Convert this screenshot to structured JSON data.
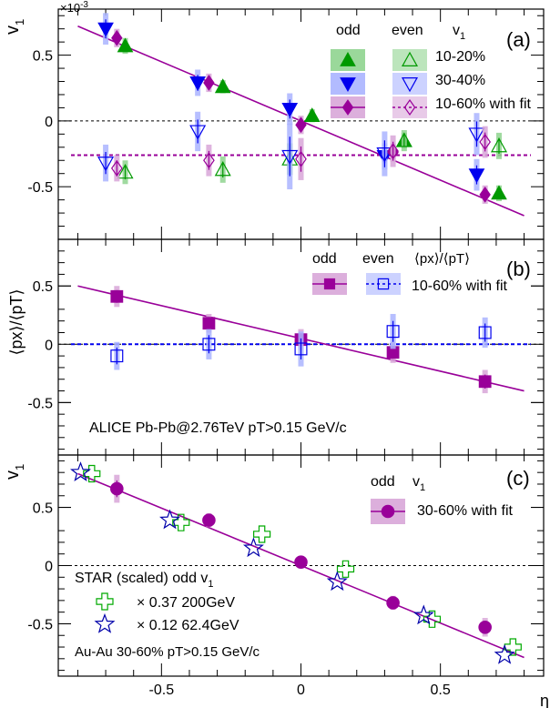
{
  "colors": {
    "green": "#009900",
    "green_light": "#8fd48f",
    "blue": "#0000ee",
    "blue_light": "#aab4ff",
    "purple": "#990099",
    "purple_light": "#d8a6d8",
    "star_green": "#00aa00",
    "star_blue": "#0000aa"
  },
  "chart_data": [
    {
      "panel": "(a)",
      "type": "scatter",
      "ylabel": "v1",
      "ylabel_sub": "1",
      "yscale_label": "×10",
      "yscale_exp": "-3",
      "xlim": [
        -0.87,
        0.87
      ],
      "ylim": [
        -0.9,
        0.85
      ],
      "yticks": [
        -0.5,
        0,
        0.5
      ],
      "ytick_labels": [
        "-0.5",
        "0",
        "0.5"
      ],
      "legend": {
        "col_odd": "odd",
        "col_even": "even",
        "col_v": "v",
        "col_v_sub": "1",
        "rows": [
          "10-20%",
          "30-40%",
          "10-60% with fit"
        ]
      },
      "series": [
        {
          "kind": "odd",
          "marker": "triangle-up",
          "color": "green",
          "x": [
            -0.63,
            -0.28,
            0.04,
            0.37,
            0.71
          ],
          "y": [
            0.57,
            0.26,
            0.04,
            -0.15,
            -0.55
          ],
          "err": [
            0.06,
            0.05,
            0.05,
            0.06,
            0.06
          ]
        },
        {
          "kind": "even",
          "marker": "triangle-up-open",
          "color": "green",
          "x": [
            -0.63,
            -0.28,
            -0.04,
            0.37,
            0.71
          ],
          "y": [
            -0.39,
            -0.37,
            -0.29,
            -0.15,
            -0.19
          ],
          "err": [
            0.09,
            0.1,
            0.12,
            0.08,
            0.1
          ]
        },
        {
          "kind": "odd",
          "marker": "triangle-down",
          "color": "blue",
          "x": [
            -0.7,
            -0.37,
            -0.04,
            0.3,
            0.63
          ],
          "y": [
            0.7,
            0.29,
            0.09,
            -0.27,
            -0.41
          ],
          "err": [
            0.12,
            0.1,
            0.12,
            0.1,
            0.12
          ]
        },
        {
          "kind": "even",
          "marker": "triangle-down-open",
          "color": "blue",
          "x": [
            -0.7,
            -0.37,
            -0.04,
            0.3,
            0.63
          ],
          "y": [
            -0.32,
            -0.08,
            -0.27,
            -0.25,
            -0.1
          ],
          "err": [
            0.14,
            0.15,
            0.25,
            0.17,
            0.16
          ]
        },
        {
          "kind": "odd",
          "marker": "diamond",
          "color": "purple",
          "x": [
            -0.66,
            -0.33,
            0,
            0.33,
            0.66
          ],
          "y": [
            0.63,
            0.29,
            -0.03,
            -0.24,
            -0.56
          ],
          "err": [
            0.07,
            0.07,
            0.07,
            0.07,
            0.07
          ]
        },
        {
          "kind": "even",
          "marker": "diamond-open",
          "color": "purple",
          "x": [
            -0.66,
            -0.33,
            0,
            0.33,
            0.66
          ],
          "y": [
            -0.36,
            -0.3,
            -0.29,
            -0.23,
            -0.16
          ],
          "err": [
            0.1,
            0.12,
            0.16,
            0.12,
            0.12
          ]
        }
      ],
      "fit_odd": {
        "x": [
          -0.8,
          0.8
        ],
        "y": [
          0.72,
          -0.72
        ]
      },
      "fit_even": {
        "y": -0.26
      }
    },
    {
      "panel": "(b)",
      "type": "scatter",
      "ylabel": "⟨px⟩/⟨pT⟩",
      "xlim": [
        -0.87,
        0.87
      ],
      "ylim": [
        -0.95,
        0.9
      ],
      "yticks": [
        -0.5,
        0,
        0.5
      ],
      "ytick_labels": [
        "-0.5",
        "0",
        "0.5"
      ],
      "legend": {
        "col_odd": "odd",
        "col_even": "even",
        "col_ratio": "⟨px⟩/⟨pT⟩",
        "row": "10-60% with fit"
      },
      "annotation": "ALICE Pb-Pb@2.76TeV  pT>0.15 GeV/c",
      "series": [
        {
          "kind": "odd",
          "marker": "square",
          "color": "purple",
          "x": [
            -0.66,
            -0.33,
            0,
            0.33,
            0.66
          ],
          "y": [
            0.41,
            0.18,
            0.04,
            -0.07,
            -0.32
          ],
          "err": [
            0.09,
            0.08,
            0.09,
            0.09,
            0.1
          ]
        },
        {
          "kind": "even",
          "marker": "square-open",
          "color": "blue",
          "x": [
            -0.66,
            -0.33,
            0,
            0.33,
            0.66
          ],
          "y": [
            -0.1,
            0.0,
            -0.04,
            0.11,
            0.1
          ],
          "err": [
            0.12,
            0.13,
            0.15,
            0.15,
            0.13
          ]
        }
      ],
      "fit_odd": {
        "x": [
          -0.8,
          0.8
        ],
        "y": [
          0.5,
          -0.4
        ]
      },
      "fit_even": {
        "y": 0.0
      }
    },
    {
      "panel": "(c)",
      "type": "scatter",
      "ylabel": "v1",
      "ylabel_sub": "1",
      "xlabel": "η",
      "xlim": [
        -0.87,
        0.87
      ],
      "ylim": [
        -0.95,
        0.95
      ],
      "xticks": [
        -0.5,
        0,
        0.5
      ],
      "xtick_labels": [
        "-0.5",
        "0",
        "0.5"
      ],
      "yticks": [
        -0.5,
        0,
        0.5
      ],
      "ytick_labels": [
        "-0.5",
        "0",
        "0.5"
      ],
      "legend": {
        "col_odd": "odd",
        "col_v": "v",
        "col_v_sub": "1",
        "row": "30-60% with fit",
        "star_title": "STAR  (scaled) odd v",
        "star_title_sub": "1",
        "star_rows": [
          "× 0.37  200GeV",
          "× 0.12  62.4GeV"
        ],
        "annotation": "Au-Au 30-60% pT>0.15 GeV/c"
      },
      "series": [
        {
          "kind": "alice",
          "marker": "circle",
          "color": "purple",
          "x": [
            -0.66,
            -0.33,
            0,
            0.33,
            0.66
          ],
          "y": [
            0.66,
            0.39,
            0.03,
            -0.32,
            -0.53
          ],
          "err": [
            0.12,
            0.06,
            0.05,
            0.06,
            0.08
          ]
        },
        {
          "kind": "star200",
          "marker": "cross-open",
          "color": "star_green",
          "x": [
            -0.75,
            -0.43,
            -0.14,
            0.16,
            0.47,
            0.76
          ],
          "y": [
            0.79,
            0.37,
            0.27,
            -0.03,
            -0.46,
            -0.7
          ],
          "err": [
            0,
            0,
            0,
            0,
            0,
            0
          ]
        },
        {
          "kind": "star62",
          "marker": "star-open",
          "color": "star_blue",
          "x": [
            -0.79,
            -0.47,
            -0.17,
            0.13,
            0.44,
            0.73
          ],
          "y": [
            0.8,
            0.39,
            0.15,
            -0.14,
            -0.43,
            -0.77
          ],
          "err": [
            0,
            0,
            0,
            0,
            0,
            0
          ]
        }
      ],
      "fit_odd": {
        "x": [
          -0.8,
          0.8
        ],
        "y": [
          0.79,
          -0.79
        ]
      }
    }
  ]
}
